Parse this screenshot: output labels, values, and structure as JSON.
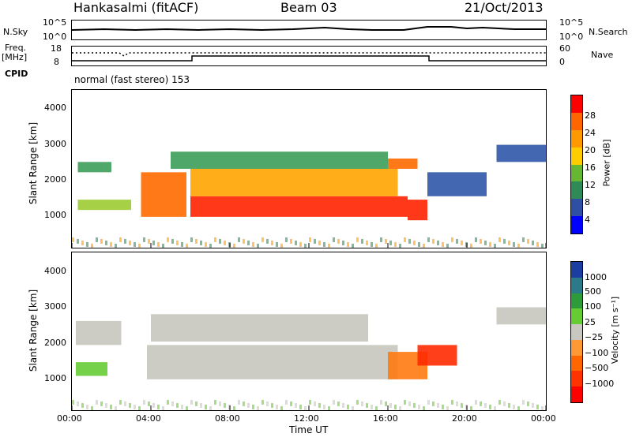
{
  "header": {
    "station": "Hankasalmi (fitACF)",
    "beam": "Beam 03",
    "date": "21/Oct/2013"
  },
  "top_panels": {
    "nsky": {
      "label": "N.Sky",
      "tick_top": "10^5",
      "tick_bottom": "10^0",
      "right_label": "N.Search",
      "right_tick_top": "10^5",
      "right_tick_bottom": "10^0"
    },
    "freq": {
      "label": "Freq.",
      "unit": "[MHz]",
      "tick_top": "18",
      "tick_bottom": "8",
      "right_label": "Nave",
      "right_tick_top": "60",
      "right_tick_bottom": "0"
    },
    "cpid": {
      "label": "CPID",
      "text": "normal (fast stereo) 153"
    }
  },
  "power_panel": {
    "ylabel": "Slant Range [km]",
    "yticks": [
      "4000",
      "3000",
      "2000",
      "1000"
    ],
    "colorbar_label": "Power [dB]",
    "colorbar_ticks": [
      "28",
      "24",
      "20",
      "16",
      "12",
      "8",
      "4"
    ],
    "colorbar_colors": [
      "#ff0000",
      "#ff6600",
      "#ff9900",
      "#ffcc00",
      "#66b833",
      "#2e8b57",
      "#2f4fa5",
      "#0000ff"
    ]
  },
  "velocity_panel": {
    "ylabel": "Slant Range [km]",
    "yticks": [
      "4000",
      "3000",
      "2000",
      "1000"
    ],
    "colorbar_label": "Velocity [m s⁻¹]",
    "colorbar_ticks": [
      "1000",
      "500",
      "100",
      "25",
      "−25",
      "−100",
      "−500",
      "−1000"
    ],
    "colorbar_colors": [
      "#1a3fa0",
      "#2a7a8a",
      "#2e9b3a",
      "#66cc33",
      "#c8c8c0",
      "#ff9933",
      "#ff6600",
      "#ff3300",
      "#ff0000"
    ]
  },
  "xaxis": {
    "label": "Time UT",
    "ticks": [
      "00:00",
      "04:00",
      "08:00",
      "12:00",
      "16:00",
      "20:00",
      "00:00"
    ]
  },
  "chart_data": [
    {
      "type": "heatmap",
      "title": "Hankasalmi (fitACF) Beam 03 21/Oct/2013",
      "xlabel": "Time UT",
      "ylabel": "Slant Range [km]",
      "xlim": [
        "00:00",
        "24:00"
      ],
      "ylim": [
        0,
        4600
      ],
      "colorbar": {
        "label": "Power [dB]",
        "range": [
          0,
          32
        ]
      },
      "regions": [
        {
          "time_start_h": 0.3,
          "time_end_h": 2.0,
          "range_min_km": 2200,
          "range_max_km": 2500,
          "power_db": 10
        },
        {
          "time_start_h": 0.3,
          "time_end_h": 3.0,
          "range_min_km": 1100,
          "range_max_km": 1400,
          "power_db": 14
        },
        {
          "time_start_h": 3.5,
          "time_end_h": 5.8,
          "range_min_km": 900,
          "range_max_km": 2200,
          "power_db": 24
        },
        {
          "time_start_h": 6.0,
          "time_end_h": 17.0,
          "range_min_km": 900,
          "range_max_km": 1500,
          "power_db": 28
        },
        {
          "time_start_h": 6.0,
          "time_end_h": 16.5,
          "range_min_km": 1500,
          "range_max_km": 2300,
          "power_db": 18
        },
        {
          "time_start_h": 5.0,
          "time_end_h": 16.0,
          "range_min_km": 2300,
          "range_max_km": 2800,
          "power_db": 12
        },
        {
          "time_start_h": 17.0,
          "time_end_h": 18.0,
          "range_min_km": 800,
          "range_max_km": 1400,
          "power_db": 28
        },
        {
          "time_start_h": 16.0,
          "time_end_h": 17.5,
          "range_min_km": 2300,
          "range_max_km": 2600,
          "power_db": 22
        },
        {
          "time_start_h": 18.0,
          "time_end_h": 21.0,
          "range_min_km": 1500,
          "range_max_km": 2200,
          "power_db": 8
        },
        {
          "time_start_h": 21.5,
          "time_end_h": 24.0,
          "range_min_km": 2500,
          "range_max_km": 3000,
          "power_db": 6
        }
      ]
    },
    {
      "type": "heatmap",
      "title": "",
      "xlabel": "Time UT",
      "ylabel": "Slant Range [km]",
      "xlim": [
        "00:00",
        "24:00"
      ],
      "ylim": [
        0,
        4600
      ],
      "colorbar": {
        "label": "Velocity [m s-1]",
        "range": [
          -1000,
          1000
        ]
      },
      "regions": [
        {
          "time_start_h": 0.2,
          "time_end_h": 2.5,
          "range_min_km": 1900,
          "range_max_km": 2600,
          "velocity": 0
        },
        {
          "time_start_h": 0.2,
          "time_end_h": 1.8,
          "range_min_km": 1000,
          "range_max_km": 1400,
          "velocity": 100
        },
        {
          "time_start_h": 3.8,
          "time_end_h": 16.5,
          "range_min_km": 900,
          "range_max_km": 1900,
          "velocity": 0
        },
        {
          "time_start_h": 4.0,
          "time_end_h": 15.0,
          "range_min_km": 2000,
          "range_max_km": 2800,
          "velocity": 0
        },
        {
          "time_start_h": 16.0,
          "time_end_h": 18.0,
          "range_min_km": 900,
          "range_max_km": 1700,
          "velocity": -300
        },
        {
          "time_start_h": 17.5,
          "time_end_h": 19.5,
          "range_min_km": 1300,
          "range_max_km": 1900,
          "velocity": -700
        },
        {
          "time_start_h": 21.5,
          "time_end_h": 24.0,
          "range_min_km": 2500,
          "range_max_km": 3000,
          "velocity": 0
        }
      ]
    }
  ]
}
